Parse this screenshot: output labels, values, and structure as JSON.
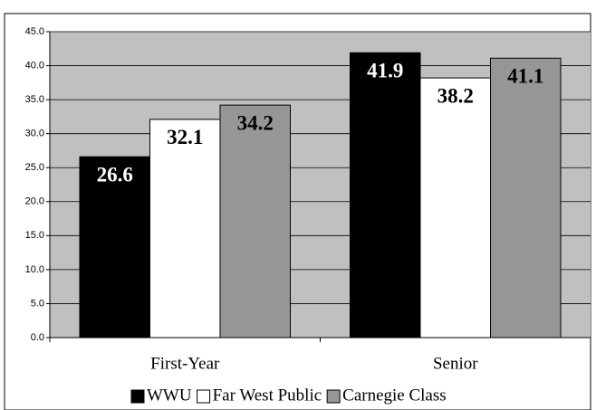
{
  "chart_data": {
    "type": "bar",
    "categories": [
      "First-Year",
      "Senior"
    ],
    "series": [
      {
        "name": "WWU",
        "color": "#000000",
        "values": [
          26.6,
          41.9
        ]
      },
      {
        "name": "Far West Public",
        "color": "#ffffff",
        "values": [
          32.1,
          38.2
        ]
      },
      {
        "name": "Carnegie Class",
        "color": "#969696",
        "values": [
          34.2,
          41.1
        ]
      }
    ],
    "ylim": [
      0,
      45
    ],
    "yticks": [
      {
        "value": 0,
        "label": "0.0"
      },
      {
        "value": 5,
        "label": "5.0"
      },
      {
        "value": 10,
        "label": "10.0"
      },
      {
        "value": 15,
        "label": "15.0"
      },
      {
        "value": 20,
        "label": "20.0"
      },
      {
        "value": 25,
        "label": "25.0"
      },
      {
        "value": 30,
        "label": "30.0"
      },
      {
        "value": 35,
        "label": "35.0"
      },
      {
        "value": 40,
        "label": "40.0"
      },
      {
        "value": 45,
        "label": "45.0"
      }
    ],
    "grid": true,
    "legend": "bottom",
    "plot_background": "#c0c0c0"
  }
}
